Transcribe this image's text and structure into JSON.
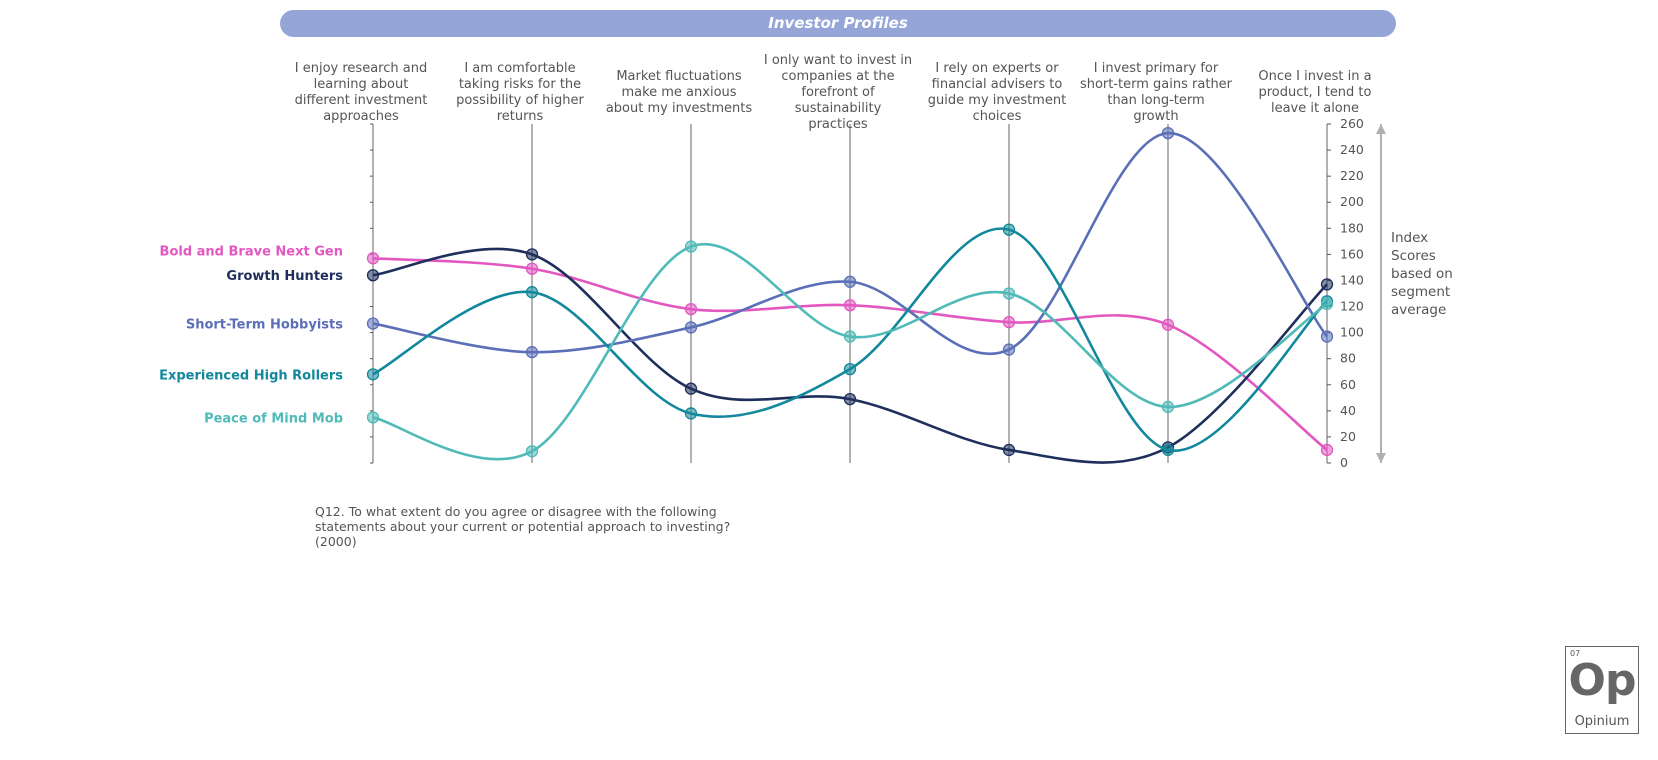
{
  "page_title": "Investor Profiles",
  "question_text": "Q12. To what extent do you agree or disagree with the following statements about your current or potential approach to investing? (2000)",
  "logo": {
    "number": "07",
    "symbol": "Op",
    "name": "Opinium"
  },
  "chart_data": {
    "type": "line",
    "title": "Investor Profiles",
    "categories": [
      "I enjoy research and learning about different investment approaches",
      "I am comfortable taking risks for the possibility of higher returns",
      "Market fluctuations make me anxious about my investments",
      "I only want to invest in companies at the forefront of sustainability practices",
      "I rely on experts or financial advisers to guide my investment choices",
      "I invest primary for short-term gains rather than long-term growth",
      "Once I invest in a product, I tend to leave it alone"
    ],
    "category_lines": [
      [
        "I enjoy research and",
        "learning about",
        "different investment",
        "approaches"
      ],
      [
        "I am comfortable",
        "taking risks for the",
        "possibility of higher",
        "returns"
      ],
      [
        "Market fluctuations",
        "make me anxious",
        "about my investments"
      ],
      [
        "I only want to invest in",
        "companies at the",
        "forefront of",
        "sustainability",
        "practices"
      ],
      [
        "I rely on experts or",
        "financial advisers to",
        "guide my investment",
        "choices"
      ],
      [
        "I invest primary for",
        "short-term gains rather",
        "than long-term",
        "growth"
      ],
      [
        "Once I invest in a",
        "product, I tend to",
        "leave it alone"
      ]
    ],
    "y_ticks": [
      0,
      20,
      40,
      60,
      80,
      100,
      120,
      140,
      160,
      180,
      200,
      220,
      240,
      260
    ],
    "ylim": [
      0,
      260
    ],
    "ylabel_lines": [
      "Index",
      "Scores",
      "based on",
      "segment",
      "average"
    ],
    "series": [
      {
        "name": "Bold and Brave Next Gen",
        "color": "#e357c0",
        "values": [
          157,
          149,
          118,
          121,
          108,
          106,
          10
        ]
      },
      {
        "name": "Growth Hunters",
        "color": "#1f2f5c",
        "values": [
          144,
          160,
          57,
          49,
          10,
          12,
          137
        ]
      },
      {
        "name": "Short-Term Hobbyists",
        "color": "#5b6fb8",
        "values": [
          107,
          85,
          104,
          139,
          87,
          253,
          97
        ]
      },
      {
        "name": "Experienced High Rollers",
        "color": "#12889c",
        "values": [
          68,
          131,
          38,
          72,
          179,
          10,
          124
        ]
      },
      {
        "name": "Peace of Mind Mob",
        "color": "#4fbab8",
        "values": [
          35,
          9,
          166,
          97,
          130,
          43,
          122
        ]
      }
    ]
  }
}
